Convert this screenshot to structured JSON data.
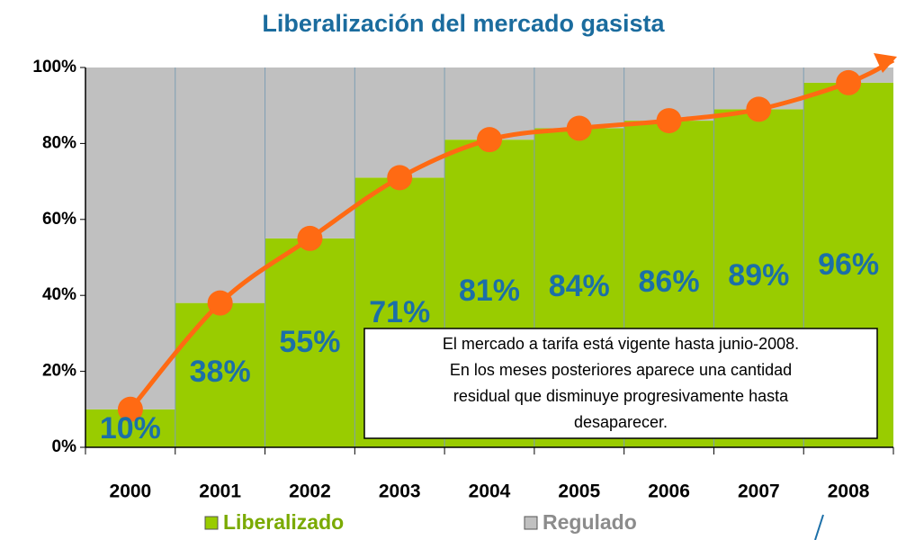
{
  "chart_data": {
    "type": "stacked_bar",
    "title": "Liberalización del mercado  gasista",
    "categories": [
      "2000",
      "2001",
      "2002",
      "2003",
      "2004",
      "2005",
      "2006",
      "2007",
      "2008"
    ],
    "series": [
      {
        "name": "Liberalizado",
        "color": "#99cc00",
        "values": [
          10,
          38,
          55,
          71,
          81,
          84,
          86,
          89,
          96
        ],
        "value_labels": [
          "10%",
          "38%",
          "55%",
          "71%",
          "81%",
          "84%",
          "86%",
          "89%",
          "96%"
        ]
      },
      {
        "name": "Regulado",
        "color": "#c0c0c0",
        "values": [
          90,
          62,
          45,
          29,
          19,
          16,
          14,
          11,
          4
        ]
      }
    ],
    "ylim": [
      0,
      100
    ],
    "yticks": [
      {
        "value": 0,
        "label": "0%"
      },
      {
        "value": 20,
        "label": "20%"
      },
      {
        "value": 40,
        "label": "40%"
      },
      {
        "value": 60,
        "label": "60%"
      },
      {
        "value": 80,
        "label": "80%"
      },
      {
        "value": 100,
        "label": "100%"
      }
    ],
    "trend_color": "#ff6a13",
    "annotation": [
      "El mercado a tarifa está vigente hasta junio-2008.",
      "En los meses posteriores aparece una cantidad",
      "residual que disminuye progresivamente hasta",
      "desaparecer."
    ]
  }
}
